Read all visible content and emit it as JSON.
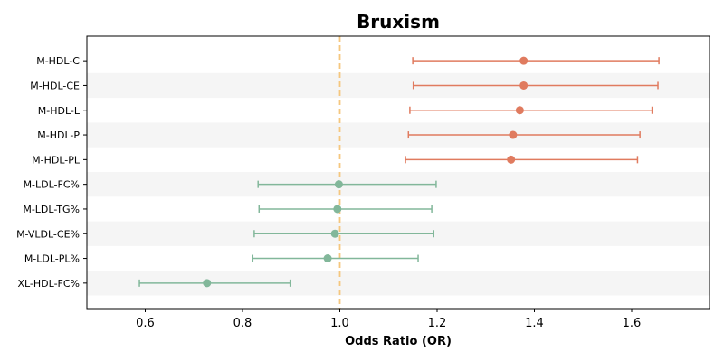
{
  "chart_data": {
    "type": "forest",
    "title": "Bruxism",
    "xlabel": "Odds Ratio (OR)",
    "ylabel": "",
    "xlim": [
      0.48,
      1.76
    ],
    "xticks": [
      0.6,
      0.8,
      1.0,
      1.2,
      1.4,
      1.6
    ],
    "xtick_labels": [
      "0.6",
      "0.8",
      "1.0",
      "1.2",
      "1.4",
      "1.6"
    ],
    "reference_line": 1.0,
    "grid": false,
    "alternating_row_shading": true,
    "colors": {
      "positive": "#e07b5f",
      "negative": "#82b79a",
      "reference_line": "#f5c77e",
      "row_shade": "#f5f5f5"
    },
    "rows": [
      {
        "label": "M-HDL-C",
        "or": 1.378,
        "lower": 1.15,
        "upper": 1.656,
        "color": "#e07b5f"
      },
      {
        "label": "M-HDL-CE",
        "or": 1.378,
        "lower": 1.151,
        "upper": 1.654,
        "color": "#e07b5f"
      },
      {
        "label": "M-HDL-L",
        "or": 1.37,
        "lower": 1.144,
        "upper": 1.642,
        "color": "#e07b5f"
      },
      {
        "label": "M-HDL-P",
        "or": 1.356,
        "lower": 1.141,
        "upper": 1.617,
        "color": "#e07b5f"
      },
      {
        "label": "M-HDL-PL",
        "or": 1.352,
        "lower": 1.135,
        "upper": 1.612,
        "color": "#e07b5f"
      },
      {
        "label": "M-LDL-FC%",
        "or": 0.998,
        "lower": 0.832,
        "upper": 1.198,
        "color": "#82b79a"
      },
      {
        "label": "M-LDL-TG%",
        "or": 0.995,
        "lower": 0.834,
        "upper": 1.189,
        "color": "#82b79a"
      },
      {
        "label": "M-VLDL-CE%",
        "or": 0.99,
        "lower": 0.824,
        "upper": 1.193,
        "color": "#82b79a"
      },
      {
        "label": "M-LDL-PL%",
        "or": 0.975,
        "lower": 0.821,
        "upper": 1.161,
        "color": "#82b79a"
      },
      {
        "label": "XL-HDL-FC%",
        "or": 0.727,
        "lower": 0.588,
        "upper": 0.898,
        "color": "#82b79a"
      }
    ]
  }
}
